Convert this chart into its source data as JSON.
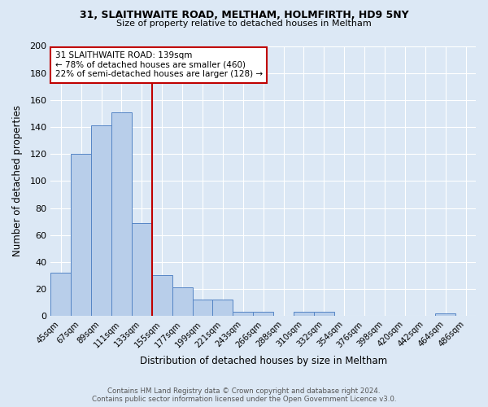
{
  "title_line1": "31, SLAITHWAITE ROAD, MELTHAM, HOLMFIRTH, HD9 5NY",
  "title_line2": "Size of property relative to detached houses in Meltham",
  "xlabel": "Distribution of detached houses by size in Meltham",
  "ylabel": "Number of detached properties",
  "categories": [
    "45sqm",
    "67sqm",
    "89sqm",
    "111sqm",
    "133sqm",
    "155sqm",
    "177sqm",
    "199sqm",
    "221sqm",
    "243sqm",
    "266sqm",
    "288sqm",
    "310sqm",
    "332sqm",
    "354sqm",
    "376sqm",
    "398sqm",
    "420sqm",
    "442sqm",
    "464sqm",
    "486sqm"
  ],
  "values": [
    32,
    120,
    141,
    151,
    69,
    30,
    21,
    12,
    12,
    3,
    3,
    0,
    3,
    3,
    0,
    0,
    0,
    0,
    0,
    2,
    0
  ],
  "bar_color": "#b8ceea",
  "bar_edge_color": "#5585c5",
  "background_color": "#dce8f5",
  "grid_color": "#ffffff",
  "vline_color": "#c00000",
  "vline_pos": 4.5,
  "annotation_line1": "31 SLAITHWAITE ROAD: 139sqm",
  "annotation_line2": "← 78% of detached houses are smaller (460)",
  "annotation_line3": "22% of semi-detached houses are larger (128) →",
  "annotation_box_color": "#ffffff",
  "annotation_box_edge_color": "#c00000",
  "ylim": [
    0,
    200
  ],
  "yticks": [
    0,
    20,
    40,
    60,
    80,
    100,
    120,
    140,
    160,
    180,
    200
  ],
  "footer_line1": "Contains HM Land Registry data © Crown copyright and database right 2024.",
  "footer_line2": "Contains public sector information licensed under the Open Government Licence v3.0."
}
